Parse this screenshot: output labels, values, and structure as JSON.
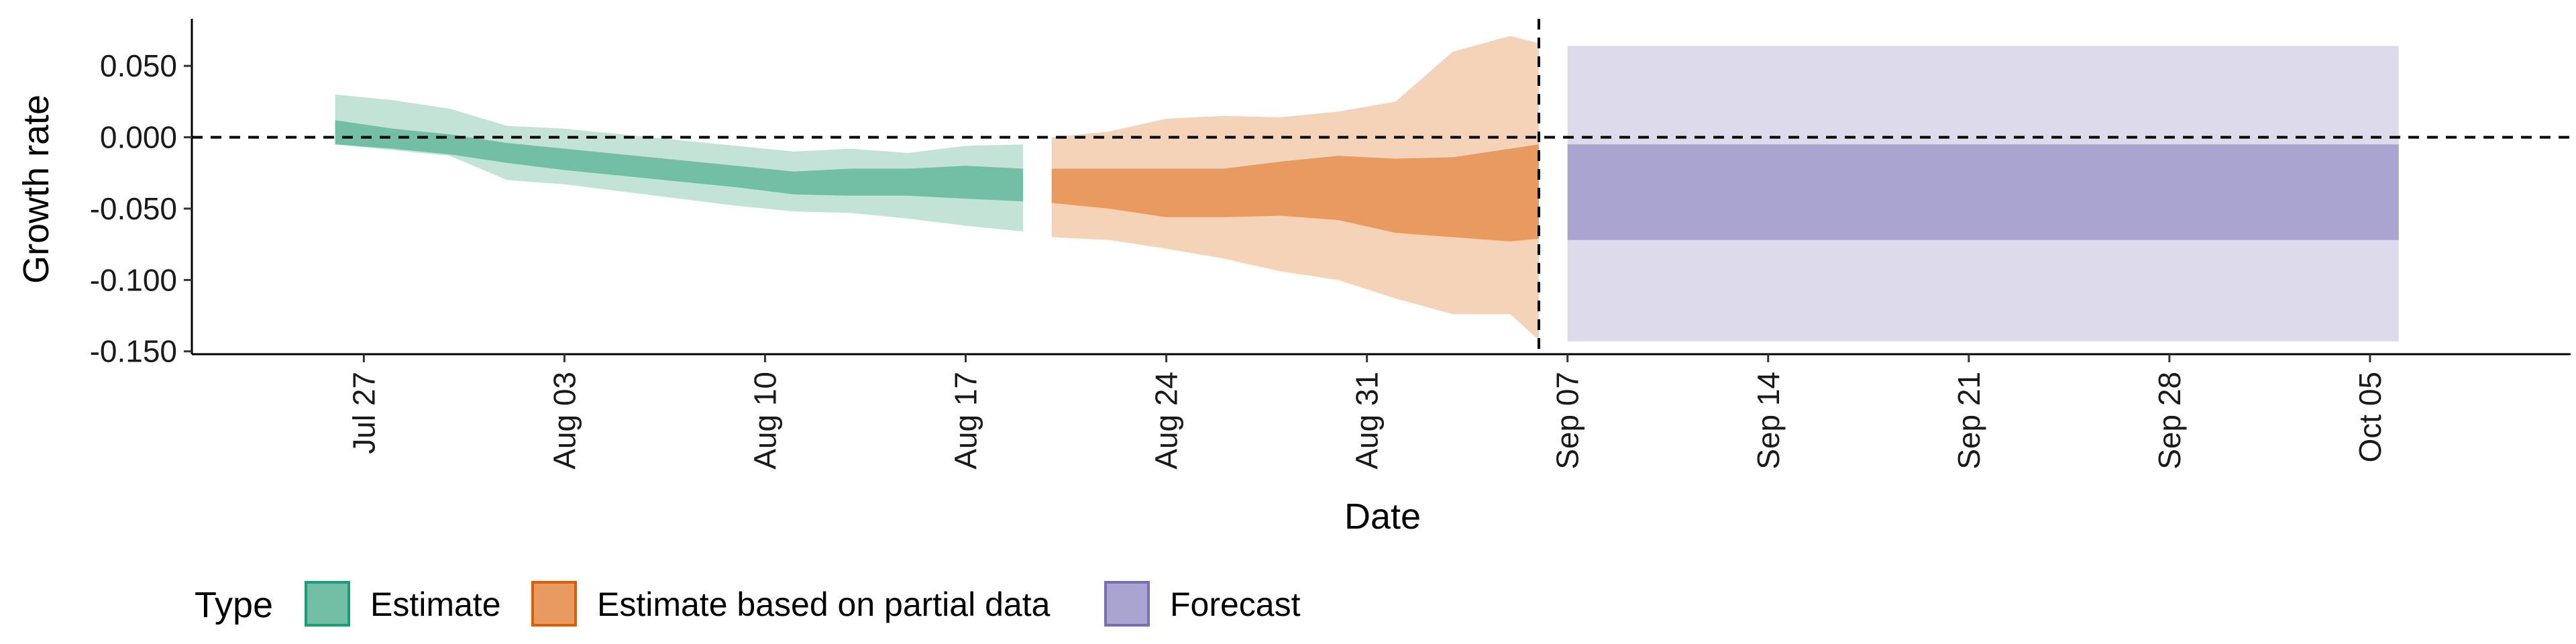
{
  "chart_data": {
    "type": "area",
    "xlabel": "Date",
    "ylabel": "Growth rate",
    "ylim": [
      -0.152,
      0.083
    ],
    "xlim": [
      "2020-07-21",
      "2020-10-12"
    ],
    "y_ticks": [
      0.05,
      0.0,
      -0.05,
      -0.1,
      -0.15
    ],
    "y_tick_labels": [
      "0.050",
      "0.000",
      "-0.050",
      "-0.100",
      "-0.150"
    ],
    "x_ticks": [
      "2020-07-27",
      "2020-08-03",
      "2020-08-10",
      "2020-08-17",
      "2020-08-24",
      "2020-08-31",
      "2020-09-07",
      "2020-09-14",
      "2020-09-21",
      "2020-09-28",
      "2020-10-05"
    ],
    "x_tick_labels": [
      "Jul 27",
      "Aug 03",
      "Aug 10",
      "Aug 17",
      "Aug 24",
      "Aug 31",
      "Sep 07",
      "Sep 14",
      "Sep 21",
      "Sep 28",
      "Oct 05"
    ],
    "reference_lines": {
      "horizontal_y": 0.0,
      "vertical_date": "2020-09-06"
    },
    "grid": false,
    "legend": {
      "title": "Type",
      "position": "bottom-left"
    },
    "colors": {
      "estimate_dark": "#72bfa5",
      "estimate_light": "#c4e3d7",
      "partial_dark": "#e89a60",
      "partial_light": "#f5d3b9",
      "forecast_dark": "#a9a5d0",
      "forecast_light": "#dcdaeb",
      "estimate_border": "#1b9e77",
      "partial_border": "#d95f02",
      "forecast_border": "#7570b3"
    },
    "series": [
      {
        "name": "Estimate",
        "legend_color": "#72bfa5",
        "points": [
          {
            "date": "2020-07-26",
            "lo90": -0.005,
            "lo50": -0.005,
            "hi50": 0.012,
            "hi90": 0.03
          },
          {
            "date": "2020-07-28",
            "lo90": -0.009,
            "lo50": -0.008,
            "hi50": 0.006,
            "hi90": 0.026
          },
          {
            "date": "2020-07-30",
            "lo90": -0.013,
            "lo50": -0.012,
            "hi50": 0.002,
            "hi90": 0.02
          },
          {
            "date": "2020-08-01",
            "lo90": -0.03,
            "lo50": -0.018,
            "hi50": -0.004,
            "hi90": 0.008
          },
          {
            "date": "2020-08-03",
            "lo90": -0.033,
            "lo50": -0.023,
            "hi50": -0.008,
            "hi90": 0.006
          },
          {
            "date": "2020-08-05",
            "lo90": -0.038,
            "lo50": -0.027,
            "hi50": -0.012,
            "hi90": 0.002
          },
          {
            "date": "2020-08-07",
            "lo90": -0.043,
            "lo50": -0.031,
            "hi50": -0.016,
            "hi90": -0.002
          },
          {
            "date": "2020-08-09",
            "lo90": -0.048,
            "lo50": -0.035,
            "hi50": -0.02,
            "hi90": -0.006
          },
          {
            "date": "2020-08-11",
            "lo90": -0.052,
            "lo50": -0.04,
            "hi50": -0.024,
            "hi90": -0.01
          },
          {
            "date": "2020-08-13",
            "lo90": -0.053,
            "lo50": -0.041,
            "hi50": -0.022,
            "hi90": -0.008
          },
          {
            "date": "2020-08-15",
            "lo90": -0.057,
            "lo50": -0.041,
            "hi50": -0.022,
            "hi90": -0.011
          },
          {
            "date": "2020-08-17",
            "lo90": -0.062,
            "lo50": -0.043,
            "hi50": -0.02,
            "hi90": -0.006
          },
          {
            "date": "2020-08-19",
            "lo90": -0.066,
            "lo50": -0.045,
            "hi50": -0.022,
            "hi90": -0.005
          }
        ]
      },
      {
        "name": "Estimate based on partial data",
        "legend_color": "#e89a60",
        "points": [
          {
            "date": "2020-08-20",
            "lo90": -0.07,
            "lo50": -0.046,
            "hi50": -0.022,
            "hi90": 0.0
          },
          {
            "date": "2020-08-22",
            "lo90": -0.072,
            "lo50": -0.05,
            "hi50": -0.022,
            "hi90": 0.004
          },
          {
            "date": "2020-08-24",
            "lo90": -0.078,
            "lo50": -0.056,
            "hi50": -0.022,
            "hi90": 0.013
          },
          {
            "date": "2020-08-26",
            "lo90": -0.085,
            "lo50": -0.056,
            "hi50": -0.022,
            "hi90": 0.015
          },
          {
            "date": "2020-08-28",
            "lo90": -0.094,
            "lo50": -0.055,
            "hi50": -0.017,
            "hi90": 0.014
          },
          {
            "date": "2020-08-30",
            "lo90": -0.1,
            "lo50": -0.058,
            "hi50": -0.013,
            "hi90": 0.018
          },
          {
            "date": "2020-09-01",
            "lo90": -0.113,
            "lo50": -0.067,
            "hi50": -0.015,
            "hi90": 0.025
          },
          {
            "date": "2020-09-03",
            "lo90": -0.124,
            "lo50": -0.07,
            "hi50": -0.014,
            "hi90": 0.06
          },
          {
            "date": "2020-09-05",
            "lo90": -0.124,
            "lo50": -0.073,
            "hi50": -0.008,
            "hi90": 0.071
          },
          {
            "date": "2020-09-06",
            "lo90": -0.142,
            "lo50": -0.071,
            "hi50": -0.005,
            "hi90": 0.066
          }
        ]
      },
      {
        "name": "Forecast",
        "legend_color": "#a9a5d0",
        "points": [
          {
            "date": "2020-09-07",
            "lo90": -0.143,
            "lo50": -0.072,
            "hi50": -0.005,
            "hi90": 0.064
          },
          {
            "date": "2020-10-06",
            "lo90": -0.143,
            "lo50": -0.072,
            "hi50": -0.005,
            "hi90": 0.064
          }
        ]
      }
    ]
  }
}
